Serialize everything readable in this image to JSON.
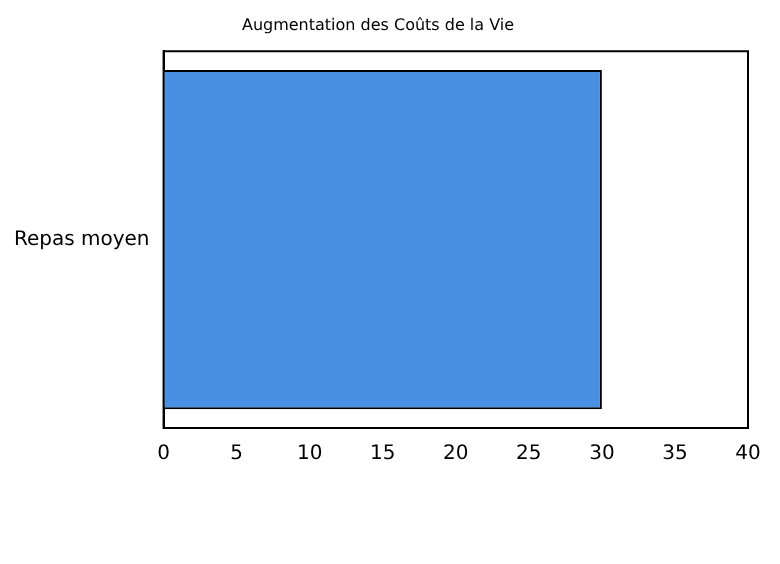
{
  "chart_data": {
    "type": "bar",
    "orientation": "horizontal",
    "title": "Augmentation des Coûts de la Vie",
    "categories": [
      "Repas moyen"
    ],
    "values": [
      30
    ],
    "color": "#4a90e2",
    "xlim": [
      0,
      40
    ],
    "xticks": [
      0,
      5,
      10,
      15,
      20,
      25,
      30,
      35,
      40
    ],
    "grid": false,
    "legend": false
  }
}
